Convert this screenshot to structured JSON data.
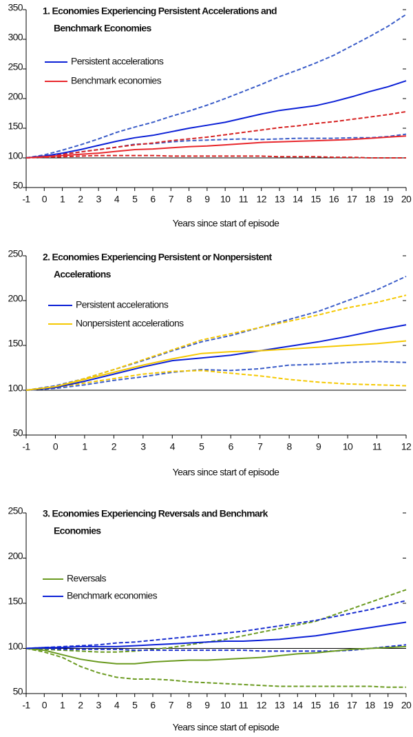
{
  "chart_data": [
    {
      "type": "line",
      "title": [
        "1. Economies Experiencing Persistent Accelerations and",
        "Benchmark Economies"
      ],
      "x_label": "Years since start of episode",
      "x": [
        -1,
        0,
        1,
        2,
        3,
        4,
        5,
        6,
        7,
        8,
        9,
        10,
        11,
        12,
        13,
        14,
        15,
        16,
        17,
        18,
        19,
        20
      ],
      "xlim": [
        -1,
        20
      ],
      "xticks": [
        -1,
        0,
        1,
        2,
        3,
        4,
        5,
        6,
        7,
        8,
        9,
        10,
        11,
        12,
        13,
        14,
        15,
        16,
        17,
        18,
        19,
        20
      ],
      "ylim": [
        50,
        350
      ],
      "yticks": [
        50,
        100,
        150,
        200,
        250,
        300,
        350
      ],
      "baseline": 100,
      "series": [
        {
          "name": "Persistent accelerations",
          "color": "#0a1fd6",
          "band_color": "#3a5cc8",
          "values": [
            100,
            103,
            108,
            114,
            121,
            128,
            134,
            138,
            144,
            150,
            155,
            160,
            167,
            174,
            180,
            184,
            188,
            195,
            203,
            212,
            220,
            230
          ],
          "upper": [
            100,
            105,
            113,
            122,
            132,
            143,
            152,
            160,
            170,
            179,
            189,
            200,
            212,
            224,
            237,
            248,
            260,
            273,
            289,
            305,
            322,
            342
          ],
          "lower": [
            100,
            102,
            106,
            110,
            114,
            118,
            123,
            124,
            127,
            129,
            130,
            131,
            132,
            131,
            132,
            133,
            133,
            133,
            134,
            134,
            136,
            140
          ]
        },
        {
          "name": "Benchmark economies",
          "color": "#e8262b",
          "band_color": "#d62020",
          "values": [
            100,
            102,
            104,
            106,
            108,
            111,
            114,
            115,
            117,
            119,
            120,
            122,
            124,
            126,
            127,
            128,
            129,
            130,
            131,
            133,
            135,
            137
          ],
          "upper": [
            100,
            103,
            106,
            110,
            114,
            118,
            122,
            125,
            129,
            132,
            135,
            139,
            143,
            147,
            151,
            154,
            158,
            161,
            165,
            169,
            173,
            178
          ],
          "lower": [
            100,
            101,
            102,
            103,
            104,
            104,
            104,
            104,
            103,
            103,
            103,
            103,
            103,
            103,
            102,
            102,
            102,
            101,
            101,
            100,
            100,
            100
          ]
        }
      ]
    },
    {
      "type": "line",
      "title": [
        "2. Economies Experiencing Persistent or Nonpersistent",
        "Accelerations"
      ],
      "x_label": "Years since start of episode",
      "x": [
        -1,
        0,
        1,
        2,
        3,
        4,
        5,
        6,
        7,
        8,
        9,
        10,
        11,
        12
      ],
      "xlim": [
        -1,
        12
      ],
      "xticks": [
        -1,
        0,
        1,
        2,
        3,
        4,
        5,
        6,
        7,
        8,
        9,
        10,
        11,
        12
      ],
      "ylim": [
        50,
        250
      ],
      "yticks": [
        50,
        100,
        150,
        200,
        250
      ],
      "baseline": 100,
      "series": [
        {
          "name": "Persistent accelerations",
          "color": "#0a1fd6",
          "band_color": "#3a5cc8",
          "values": [
            100,
            103,
            110,
            118,
            126,
            133,
            136,
            139,
            144,
            149,
            154,
            160,
            167,
            173
          ],
          "upper": [
            100,
            105,
            113,
            123,
            133,
            144,
            154,
            161,
            170,
            179,
            188,
            200,
            212,
            227
          ],
          "lower": [
            100,
            102,
            106,
            111,
            115,
            120,
            123,
            122,
            124,
            128,
            129,
            131,
            132,
            131
          ]
        },
        {
          "name": "Nonpersistent accelerations",
          "color": "#f5c800",
          "band_color": "#f5c800",
          "values": [
            100,
            104,
            112,
            120,
            128,
            135,
            141,
            143,
            144,
            146,
            148,
            150,
            152,
            155
          ],
          "upper": [
            100,
            104,
            113,
            123,
            134,
            145,
            156,
            163,
            170,
            177,
            184,
            192,
            198,
            206
          ],
          "lower": [
            100,
            103,
            108,
            113,
            118,
            121,
            122,
            119,
            116,
            112,
            109,
            107,
            106,
            105
          ]
        }
      ]
    },
    {
      "type": "line",
      "title": [
        "3. Economies Experiencing Reversals and Benchmark",
        "Economies"
      ],
      "x_label": "Years since start of episode",
      "x": [
        -1,
        0,
        1,
        2,
        3,
        4,
        5,
        6,
        7,
        8,
        9,
        10,
        11,
        12,
        13,
        14,
        15,
        16,
        17,
        18,
        19,
        20
      ],
      "xlim": [
        -1,
        20
      ],
      "xticks": [
        -1,
        0,
        1,
        2,
        3,
        4,
        5,
        6,
        7,
        8,
        9,
        10,
        11,
        12,
        13,
        14,
        15,
        16,
        17,
        18,
        19,
        20
      ],
      "ylim": [
        50,
        250
      ],
      "yticks": [
        50,
        100,
        150,
        200,
        250
      ],
      "baseline": 100,
      "series": [
        {
          "name": "Reversals",
          "color": "#6a9a1f",
          "band_color": "#6a9a1f",
          "values": [
            100,
            98,
            93,
            88,
            85,
            83,
            83,
            85,
            86,
            87,
            87,
            88,
            89,
            90,
            92,
            94,
            95,
            97,
            99,
            100,
            101,
            102
          ],
          "upper": [
            100,
            99,
            98,
            97,
            96,
            96,
            97,
            99,
            101,
            104,
            107,
            110,
            114,
            118,
            122,
            126,
            130,
            137,
            144,
            151,
            158,
            165
          ],
          "lower": [
            100,
            96,
            90,
            80,
            73,
            68,
            66,
            66,
            65,
            63,
            62,
            61,
            60,
            59,
            58,
            58,
            58,
            58,
            58,
            58,
            57,
            57
          ]
        },
        {
          "name": "Benchmark economies",
          "color": "#0a1fd6",
          "band_color": "#1a2fd0",
          "values": [
            100,
            101,
            101,
            102,
            102,
            102,
            103,
            104,
            105,
            106,
            107,
            108,
            108,
            109,
            110,
            112,
            114,
            117,
            120,
            123,
            126,
            129
          ],
          "upper": [
            100,
            101,
            102,
            103,
            104,
            106,
            107,
            109,
            111,
            113,
            115,
            117,
            119,
            122,
            125,
            128,
            131,
            135,
            139,
            143,
            148,
            153
          ],
          "lower": [
            100,
            100,
            99,
            99,
            99,
            99,
            98,
            98,
            98,
            98,
            98,
            98,
            98,
            97,
            97,
            97,
            97,
            97,
            98,
            100,
            102,
            104
          ]
        }
      ]
    }
  ]
}
